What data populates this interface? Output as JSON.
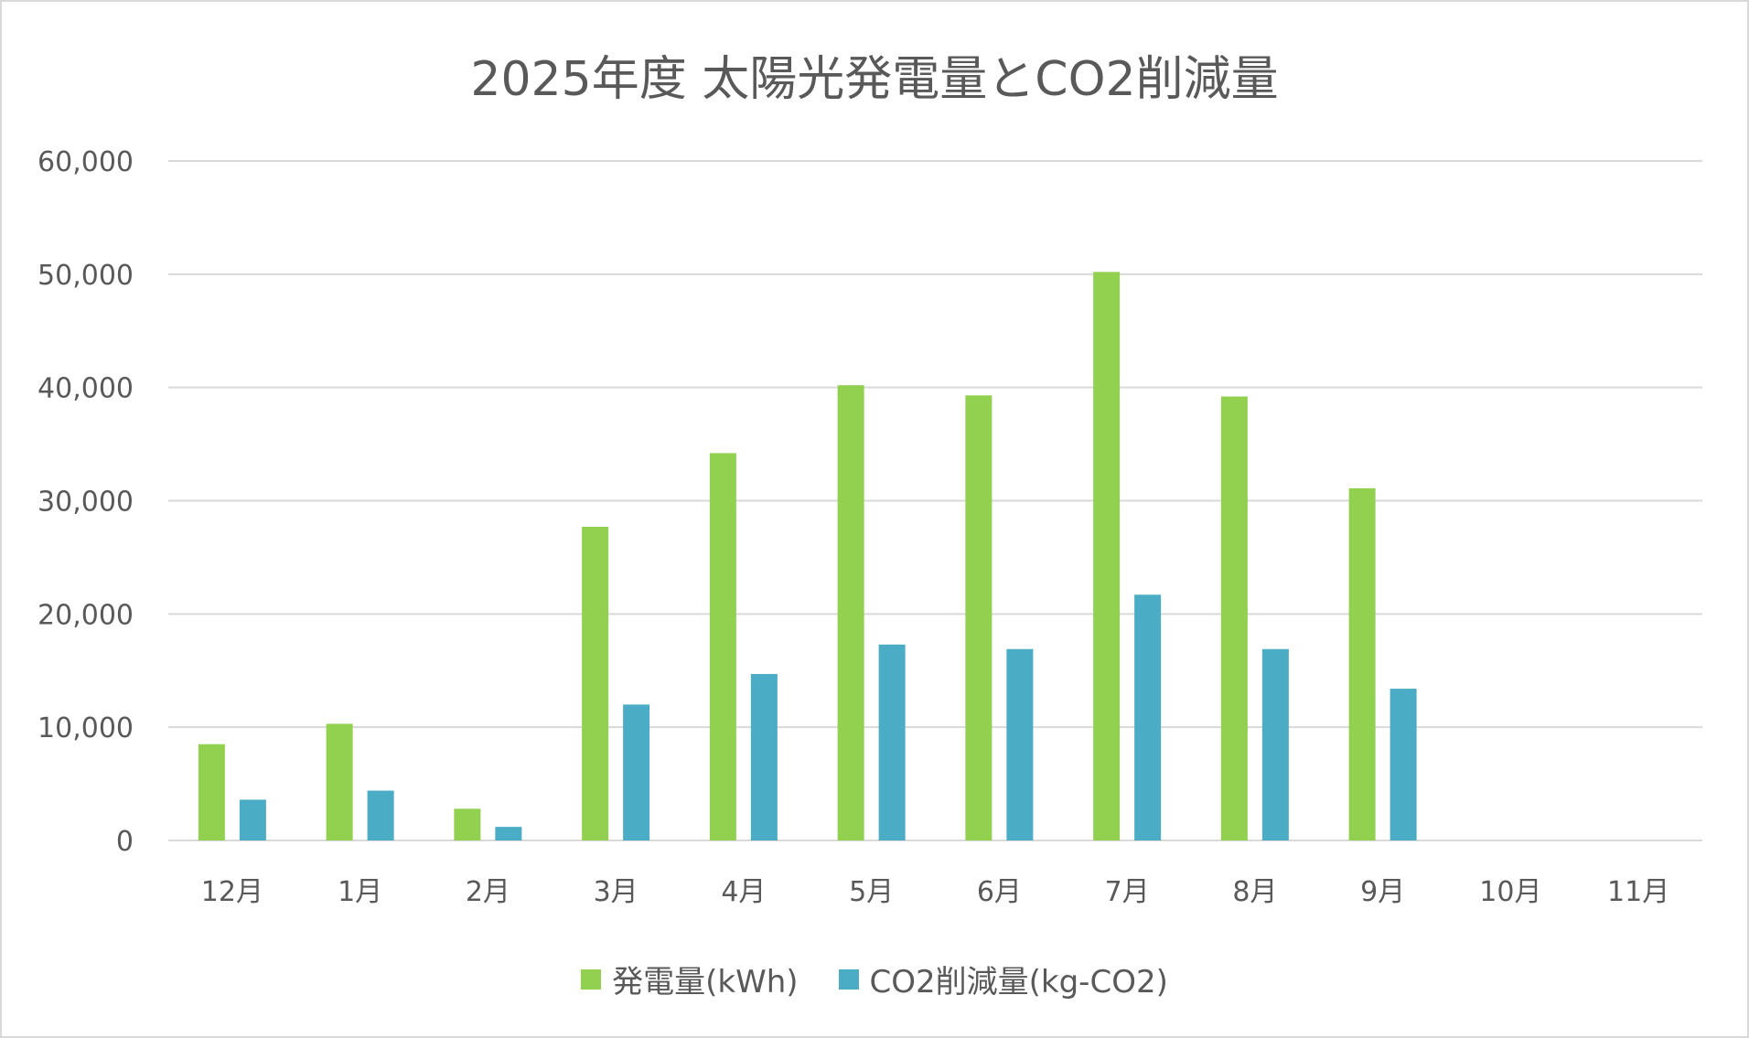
{
  "chart_data": {
    "type": "bar",
    "title": "2025年度 太陽光発電量とCO2削減量",
    "xlabel": "",
    "ylabel": "",
    "categories": [
      "12月",
      "1月",
      "2月",
      "3月",
      "4月",
      "5月",
      "6月",
      "7月",
      "8月",
      "9月",
      "10月",
      "11月"
    ],
    "series": [
      {
        "name": "発電量(kWh)",
        "color": "#92D050",
        "values": [
          8500,
          10300,
          2800,
          27700,
          34200,
          40200,
          39300,
          50200,
          39200,
          31100,
          null,
          null
        ]
      },
      {
        "name": "CO2削減量(kg-CO2)",
        "color": "#4BACC6",
        "values": [
          3600,
          4400,
          1200,
          12000,
          14700,
          17300,
          16900,
          21700,
          16900,
          13400,
          null,
          null
        ]
      }
    ],
    "ylim": [
      0,
      60000
    ],
    "yticks": [
      0,
      10000,
      20000,
      30000,
      40000,
      50000,
      60000
    ],
    "ytick_labels": [
      "0",
      "10,000",
      "20,000",
      "30,000",
      "40,000",
      "50,000",
      "60,000"
    ],
    "grid": true,
    "legend_position": "bottom"
  }
}
